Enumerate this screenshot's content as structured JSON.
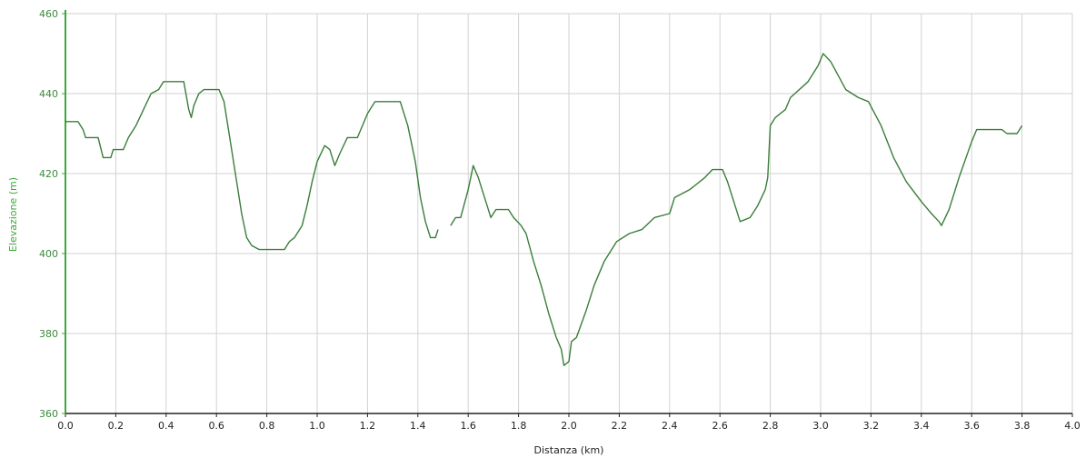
{
  "chart_data": {
    "type": "line",
    "title": "",
    "xlabel": "Distanza (km)",
    "ylabel": "Elevazione (m)",
    "xlim": [
      0.0,
      4.0
    ],
    "ylim": [
      360,
      460
    ],
    "x_ticks": [
      "0.0",
      "0.2",
      "0.4",
      "0.6",
      "0.8",
      "1.0",
      "1.2",
      "1.4",
      "1.6",
      "1.8",
      "2.0",
      "2.2",
      "2.4",
      "2.6",
      "2.8",
      "3.0",
      "3.2",
      "3.4",
      "3.6",
      "3.8",
      "4.0"
    ],
    "y_ticks": [
      "360",
      "380",
      "400",
      "420",
      "440",
      "460"
    ],
    "grid": true,
    "legend": "none",
    "colors": {
      "line": "#3a7d3a",
      "y_axis": "#3aa83a",
      "x_axis": "#222222",
      "grid": "#d2d2d2",
      "y_tick_text": "#3c8a3c",
      "x_tick_text": "#222222"
    },
    "series": [
      {
        "segments": [
          [
            [
              0.0,
              433
            ],
            [
              0.05,
              433
            ],
            [
              0.07,
              431
            ],
            [
              0.08,
              429
            ],
            [
              0.13,
              429
            ],
            [
              0.15,
              424
            ],
            [
              0.18,
              424
            ],
            [
              0.19,
              426
            ],
            [
              0.23,
              426
            ],
            [
              0.25,
              429
            ],
            [
              0.28,
              432
            ],
            [
              0.31,
              436
            ],
            [
              0.34,
              440
            ],
            [
              0.37,
              441
            ],
            [
              0.39,
              443
            ],
            [
              0.47,
              443
            ],
            [
              0.49,
              436
            ],
            [
              0.5,
              434
            ],
            [
              0.51,
              437
            ],
            [
              0.53,
              440
            ],
            [
              0.55,
              441
            ],
            [
              0.61,
              441
            ],
            [
              0.63,
              438
            ],
            [
              0.65,
              430
            ],
            [
              0.68,
              418
            ],
            [
              0.7,
              410
            ],
            [
              0.72,
              404
            ],
            [
              0.74,
              402
            ],
            [
              0.77,
              401
            ],
            [
              0.87,
              401
            ],
            [
              0.89,
              403
            ],
            [
              0.91,
              404
            ],
            [
              0.94,
              407
            ],
            [
              0.96,
              412
            ],
            [
              0.98,
              418
            ],
            [
              1.0,
              423
            ],
            [
              1.03,
              427
            ],
            [
              1.05,
              426
            ],
            [
              1.07,
              422
            ],
            [
              1.09,
              425
            ],
            [
              1.12,
              429
            ],
            [
              1.16,
              429
            ],
            [
              1.2,
              435
            ],
            [
              1.23,
              438
            ],
            [
              1.33,
              438
            ],
            [
              1.36,
              432
            ],
            [
              1.39,
              423
            ],
            [
              1.41,
              414
            ],
            [
              1.43,
              408
            ],
            [
              1.45,
              404
            ],
            [
              1.47,
              404
            ],
            [
              1.48,
              406
            ]
          ],
          [
            [
              1.53,
              407
            ],
            [
              1.55,
              409
            ],
            [
              1.57,
              409
            ],
            [
              1.6,
              416
            ],
            [
              1.62,
              422
            ],
            [
              1.64,
              419
            ],
            [
              1.67,
              413
            ],
            [
              1.69,
              409
            ],
            [
              1.71,
              411
            ],
            [
              1.76,
              411
            ],
            [
              1.78,
              409
            ],
            [
              1.81,
              407
            ],
            [
              1.83,
              405
            ],
            [
              1.86,
              398
            ],
            [
              1.89,
              392
            ],
            [
              1.92,
              385
            ],
            [
              1.95,
              379
            ],
            [
              1.97,
              376
            ],
            [
              1.98,
              372
            ],
            [
              2.0,
              373
            ],
            [
              2.01,
              378
            ],
            [
              2.03,
              379
            ],
            [
              2.07,
              386
            ],
            [
              2.1,
              392
            ],
            [
              2.14,
              398
            ],
            [
              2.19,
              403
            ],
            [
              2.24,
              405
            ],
            [
              2.29,
              406
            ],
            [
              2.34,
              409
            ],
            [
              2.4,
              410
            ],
            [
              2.42,
              414
            ],
            [
              2.48,
              416
            ],
            [
              2.54,
              419
            ],
            [
              2.57,
              421
            ],
            [
              2.61,
              421
            ],
            [
              2.63,
              418
            ],
            [
              2.66,
              412
            ],
            [
              2.68,
              408
            ],
            [
              2.72,
              409
            ],
            [
              2.75,
              412
            ],
            [
              2.78,
              416
            ],
            [
              2.79,
              419
            ],
            [
              2.8,
              432
            ],
            [
              2.82,
              434
            ],
            [
              2.86,
              436
            ],
            [
              2.88,
              439
            ],
            [
              2.95,
              443
            ],
            [
              2.99,
              447
            ],
            [
              3.01,
              450
            ],
            [
              3.04,
              448
            ],
            [
              3.1,
              441
            ],
            [
              3.15,
              439
            ],
            [
              3.19,
              438
            ],
            [
              3.24,
              432
            ],
            [
              3.29,
              424
            ],
            [
              3.34,
              418
            ],
            [
              3.4,
              413
            ],
            [
              3.44,
              410
            ],
            [
              3.47,
              408
            ],
            [
              3.48,
              407
            ],
            [
              3.51,
              411
            ],
            [
              3.55,
              419
            ],
            [
              3.6,
              428
            ],
            [
              3.62,
              431
            ],
            [
              3.72,
              431
            ],
            [
              3.74,
              430
            ],
            [
              3.78,
              430
            ],
            [
              3.8,
              432
            ]
          ]
        ]
      }
    ]
  }
}
